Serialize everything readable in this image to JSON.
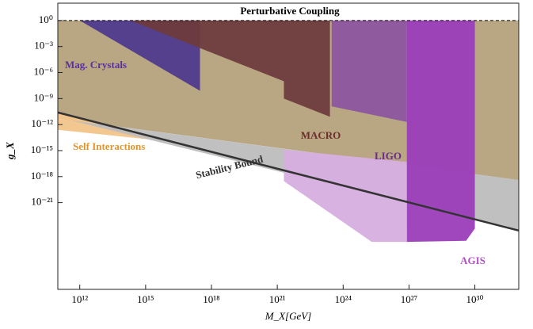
{
  "chart_data": {
    "type": "region",
    "xlabel": "M_X[GeV]",
    "ylabel": "g_X",
    "xscale": "log",
    "yscale": "log",
    "xlim": [
      100000000000.0,
      1e+32
    ],
    "ylim": [
      1e-31,
      100
    ],
    "xticks": [
      {
        "value": 1000000000000.0,
        "label": "10¹²"
      },
      {
        "value": 1000000000000000.0,
        "label": "10¹⁵"
      },
      {
        "value": 1e+18,
        "label": "10¹⁸"
      },
      {
        "value": 1e+21,
        "label": "10²¹"
      },
      {
        "value": 1e+24,
        "label": "10²⁴"
      },
      {
        "value": 1e+27,
        "label": "10²⁷"
      },
      {
        "value": 1e+30,
        "label": "10³⁰"
      }
    ],
    "yticks": [
      {
        "value": 1,
        "label": "10⁰"
      },
      {
        "value": 0.001,
        "label": "10⁻³"
      },
      {
        "value": 1e-06,
        "label": "10⁻⁶"
      },
      {
        "value": 1e-09,
        "label": "10⁻⁹"
      },
      {
        "value": 1e-12,
        "label": "10⁻¹²"
      },
      {
        "value": 1e-15,
        "label": "10⁻¹⁵"
      },
      {
        "value": 1e-18,
        "label": "10⁻¹⁸"
      },
      {
        "value": 1e-21,
        "label": "10⁻²¹"
      }
    ],
    "regions": [
      {
        "color": "#b5a17c",
        "x": [
          100000000000.0,
          1e+32,
          1e+32,
          100000000000.0
        ],
        "y": [
          1,
          1,
          4e-19,
          5e-12
        ]
      },
      {
        "name": "Self Interactions",
        "color": "#f2c58a",
        "label_color": "#e0952a",
        "x": [
          100000000000.0,
          4e+16,
          100000000000.0
        ],
        "y": [
          2.5e-11,
          8e-15,
          2.5e-13
        ]
      },
      {
        "color": "#bdbdbd",
        "x": [
          400000000000.0,
          1e+32,
          1e+32
        ],
        "y": [
          3e-12,
          4e-19,
          6e-25
        ]
      },
      {
        "name": "Mag. Crystals",
        "color": "#4e3a8c",
        "label_color": "#5a2fa0",
        "x": [
          1000000000000.0,
          3e+17,
          3e+17
        ],
        "y": [
          1,
          1,
          8e-09
        ]
      },
      {
        "name": "MACRO",
        "color": "#6e3b3e",
        "label_color": "#6e2e2e",
        "x": [
          200000000000000.0,
          2.5e+23,
          2.5e+23,
          2e+21,
          2e+21
        ],
        "y": [
          1,
          1,
          8e-12,
          1e-09,
          1e-07
        ]
      },
      {
        "name": "LIGO",
        "color": "#8d55a0",
        "label_color": "#6a2a8a",
        "x": [
          3e+23,
          8e+26,
          8e+26,
          3e+23
        ],
        "y": [
          1,
          1,
          2e-12,
          1.26e-10
        ]
      },
      {
        "color": "#d6aede",
        "x": [
          2e+21,
          8e+26,
          8e+26,
          2e+25,
          2e+21
        ],
        "y": [
          1.26e-15,
          5e-17,
          3e-26,
          3e-26,
          3e-19
        ]
      },
      {
        "name": "AGIS",
        "color": "#9b3dbb",
        "label_color": "#b050c8",
        "x": [
          8e+26,
          1e+30,
          1e+30,
          4e+29,
          8e+26
        ],
        "y": [
          1,
          1,
          1e-24,
          4e-26,
          3e-26
        ]
      }
    ],
    "lines": [
      {
        "name": "Stability Bound",
        "color": "#333333",
        "x": [
          100000000000.0,
          1e+32
        ],
        "y": [
          2.5e-11,
          6e-25
        ]
      },
      {
        "name": "Perturbative Coupling",
        "color": "#000000",
        "dashed": true,
        "x": [
          100000000000.0,
          1e+32
        ],
        "y": [
          1,
          1
        ]
      }
    ]
  }
}
